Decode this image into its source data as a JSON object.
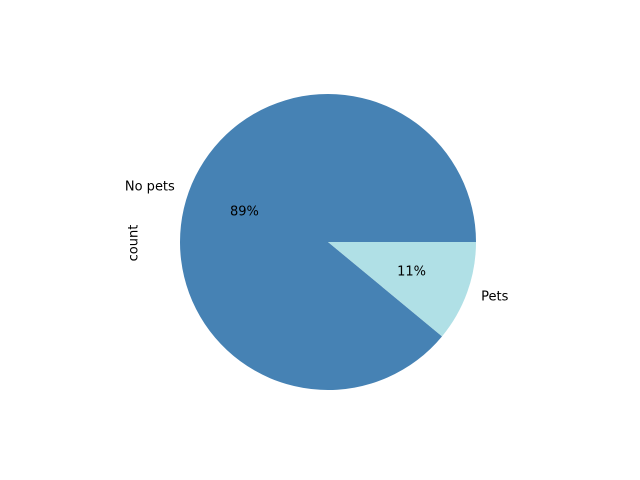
{
  "chart_data": {
    "type": "pie",
    "title": "",
    "ylabel": "count",
    "slices": [
      {
        "label": "No pets",
        "value": 89,
        "pct_label": "89%",
        "color": "#4682b4"
      },
      {
        "label": "Pets",
        "value": 11,
        "pct_label": "11%",
        "color": "#b0e0e6"
      }
    ],
    "start_angle_deg": 0,
    "direction": "counterclockwise"
  }
}
